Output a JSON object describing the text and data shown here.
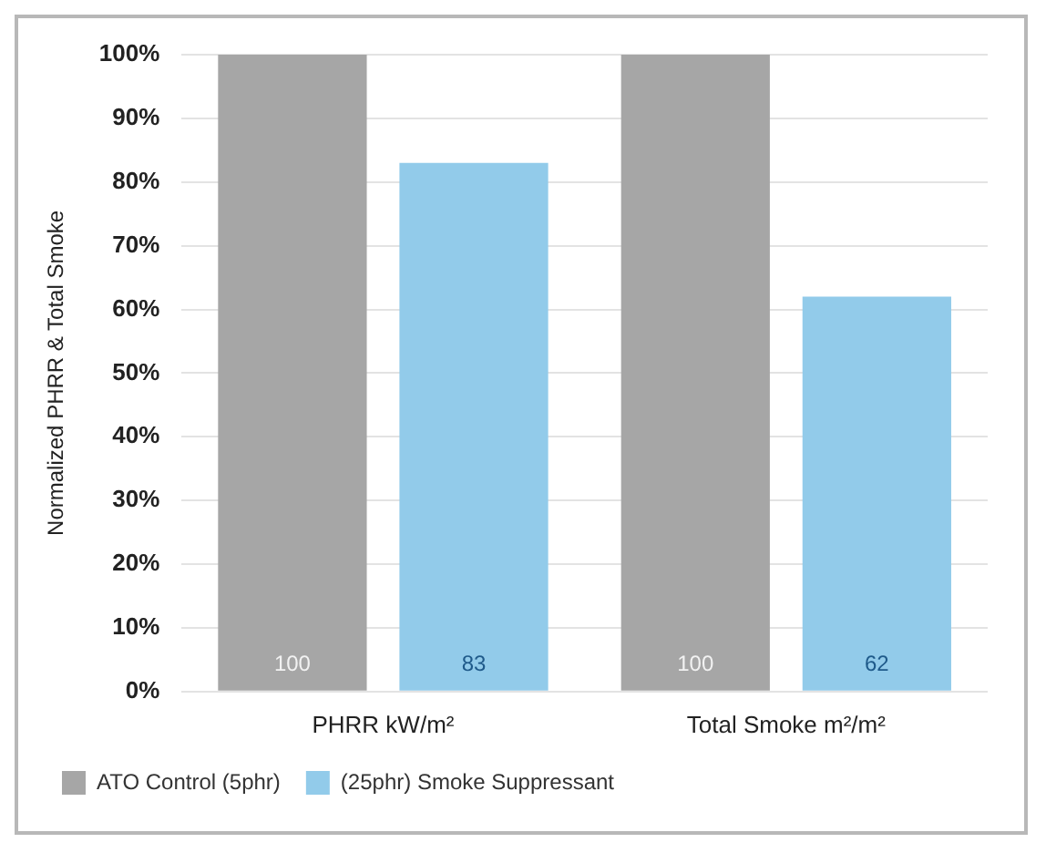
{
  "chart_data": {
    "type": "bar",
    "ylabel": "Normalized PHRR & Total Smoke",
    "categories": [
      "PHRR kW/m²",
      "Total Smoke m²/m²"
    ],
    "series": [
      {
        "name": "ATO Control (5phr)",
        "color": "#a6a6a6",
        "values": [
          100,
          100
        ]
      },
      {
        "name": "(25phr) Smoke Suppressant",
        "color": "#92cbea",
        "values": [
          83,
          62
        ]
      }
    ],
    "ylim": [
      0,
      100
    ],
    "yticks": [
      {
        "value": 0,
        "label": "0%"
      },
      {
        "value": 10,
        "label": "10%"
      },
      {
        "value": 20,
        "label": "20%"
      },
      {
        "value": 30,
        "label": "30%"
      },
      {
        "value": 40,
        "label": "40%"
      },
      {
        "value": 50,
        "label": "50%"
      },
      {
        "value": 60,
        "label": "60%"
      },
      {
        "value": 70,
        "label": "70%"
      },
      {
        "value": 80,
        "label": "80%"
      },
      {
        "value": 90,
        "label": "90%"
      },
      {
        "value": 100,
        "label": "100%"
      }
    ],
    "grid": "y",
    "legend": "bottom left",
    "data_labels": true
  }
}
